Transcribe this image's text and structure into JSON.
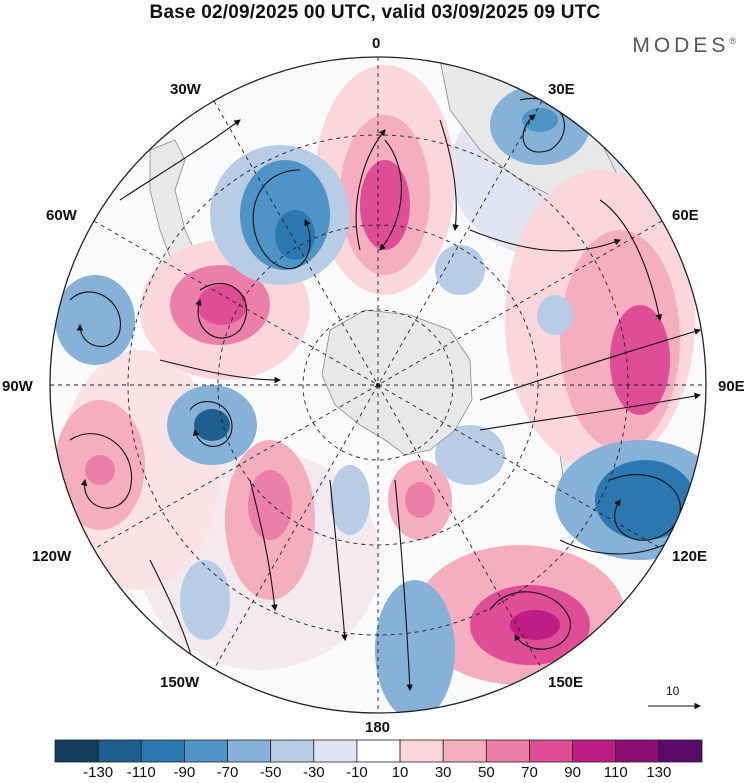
{
  "header": {
    "title": "Base 02/09/2025 00 UTC, valid 03/09/2025 09 UTC",
    "brand": "MODES",
    "brand_mark": "®"
  },
  "map": {
    "projection": "south-polar-stereographic",
    "longitude_labels": {
      "lon_0": "0",
      "lon_30e": "30E",
      "lon_60e": "60E",
      "lon_90e": "90E",
      "lon_120e": "120E",
      "lon_150e": "150E",
      "lon_180": "180",
      "lon_150w": "150W",
      "lon_120w": "120W",
      "lon_90w": "90W",
      "lon_60w": "60W",
      "lon_30w": "30W"
    },
    "reference_vector": "10"
  },
  "colorbar": {
    "labels": [
      "-130",
      "-110",
      "-90",
      "-70",
      "-50",
      "-30",
      "-10",
      "10",
      "30",
      "50",
      "70",
      "90",
      "110",
      "130"
    ],
    "colors": [
      "#143d5d",
      "#1e5f8e",
      "#2b78b0",
      "#4f94c6",
      "#86b1d8",
      "#b8cce6",
      "#e2e4f2",
      "#ffffff",
      "#fbd7dd",
      "#f5aec0",
      "#ec7fa8",
      "#df4d97",
      "#bf1d86",
      "#8d0f76",
      "#5a0a6b"
    ]
  },
  "colors": {
    "land": "#e8e8e8",
    "positive_accent": "#df4d97",
    "negative_accent": "#2b78b0"
  }
}
